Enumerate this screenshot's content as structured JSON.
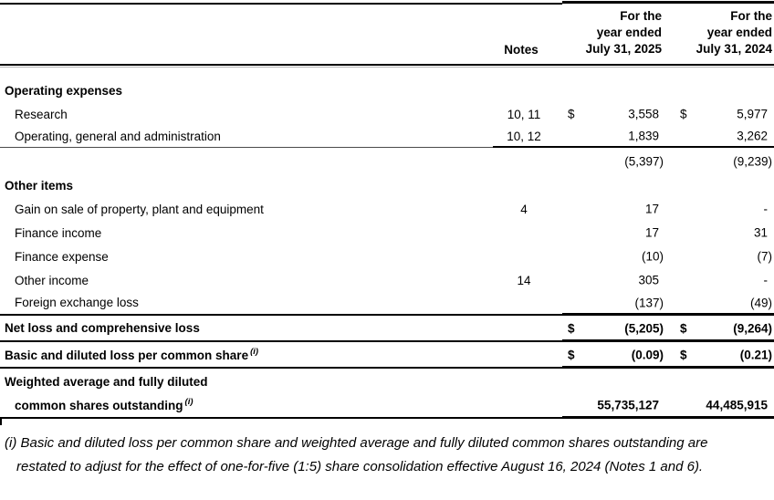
{
  "header": {
    "notes": "Notes",
    "period_2025": {
      "line1": "For the",
      "line2": "year ended",
      "line3": "July 31, 2025"
    },
    "period_2024": {
      "line1": "For the",
      "line2": "year ended",
      "line3": "July 31, 2024"
    }
  },
  "rows": [
    {
      "label": "Operating expenses"
    },
    {
      "label": "Research",
      "note": "10, 11",
      "d25": "$",
      "v25": "3,558",
      "d24": "$",
      "v24": "5,977"
    },
    {
      "label": "Operating, general and administration",
      "note": "10, 12",
      "v25": "1,839",
      "v24": "3,262"
    },
    {
      "v25": "(5,397)",
      "v24": "(9,239)"
    },
    {
      "label": "Other items"
    },
    {
      "label": "Gain on sale of property, plant and equipment",
      "note": "4",
      "v25": "17",
      "v24": "-"
    },
    {
      "label": "Finance income",
      "v25": "17",
      "v24": "31"
    },
    {
      "label": "Finance expense",
      "v25": "(10)",
      "v24": "(7)"
    },
    {
      "label": "Other income",
      "note": "14",
      "v25": "305",
      "v24": "-"
    },
    {
      "label": "Foreign exchange loss",
      "v25": "(137)",
      "v24": "(49)"
    },
    {
      "label": "Net loss and comprehensive loss",
      "d25": "$",
      "v25": "(5,205)",
      "d24": "$",
      "v24": "(9,264)"
    },
    {
      "label": "Basic and diluted loss per common share",
      "sup": "(i)",
      "d25": "$",
      "v25": "(0.09)",
      "d24": "$",
      "v24": "(0.21)"
    },
    {
      "label_line1": "Weighted average and fully diluted",
      "label_line2": "common shares outstanding",
      "sup": "(i)",
      "v25": "55,735,127",
      "v24": "44,485,915"
    }
  ],
  "footnote": {
    "line1": "(i) Basic and diluted loss per common share and weighted average and fully diluted common shares outstanding are",
    "line2": "restated to adjust for the effect of one-for-five (1:5) share consolidation effective August 16, 2024 (Notes 1 and 6)."
  }
}
